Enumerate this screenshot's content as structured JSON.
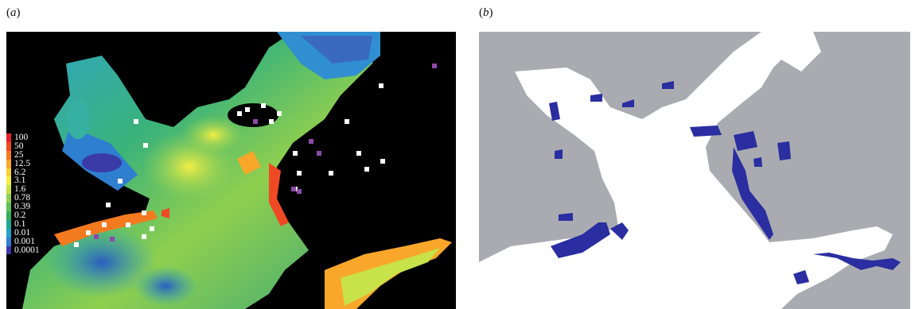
{
  "panels": {
    "a": {
      "label_open": "(",
      "label_letter": "a",
      "label_close": ")",
      "legend": [
        {
          "value": "100",
          "color": "#e8202a"
        },
        {
          "value": "50",
          "color": "#ef4a23"
        },
        {
          "value": "25",
          "color": "#f47a20"
        },
        {
          "value": "12.5",
          "color": "#f8a72a"
        },
        {
          "value": "6.2",
          "color": "#fbd035"
        },
        {
          "value": "3.1",
          "color": "#f4ee45"
        },
        {
          "value": "1.6",
          "color": "#c8e24a"
        },
        {
          "value": "0.78",
          "color": "#8fd152"
        },
        {
          "value": "0.39",
          "color": "#5fc15a"
        },
        {
          "value": "0.2",
          "color": "#36b05c"
        },
        {
          "value": "0.1",
          "color": "#1fa890"
        },
        {
          "value": "0.01",
          "color": "#23a3c9"
        },
        {
          "value": "0.001",
          "color": "#2f7fd0"
        },
        {
          "value": "0.0001",
          "color": "#3a3aa8"
        }
      ]
    },
    "b": {
      "label_open": "(",
      "label_letter": "b",
      "label_close": ")"
    }
  },
  "colors": {
    "map_a_background": "#000000",
    "map_b_land": "#a9abb1",
    "map_b_ocean": "#ffffff",
    "map_b_highlight": "#2a2ea0"
  }
}
